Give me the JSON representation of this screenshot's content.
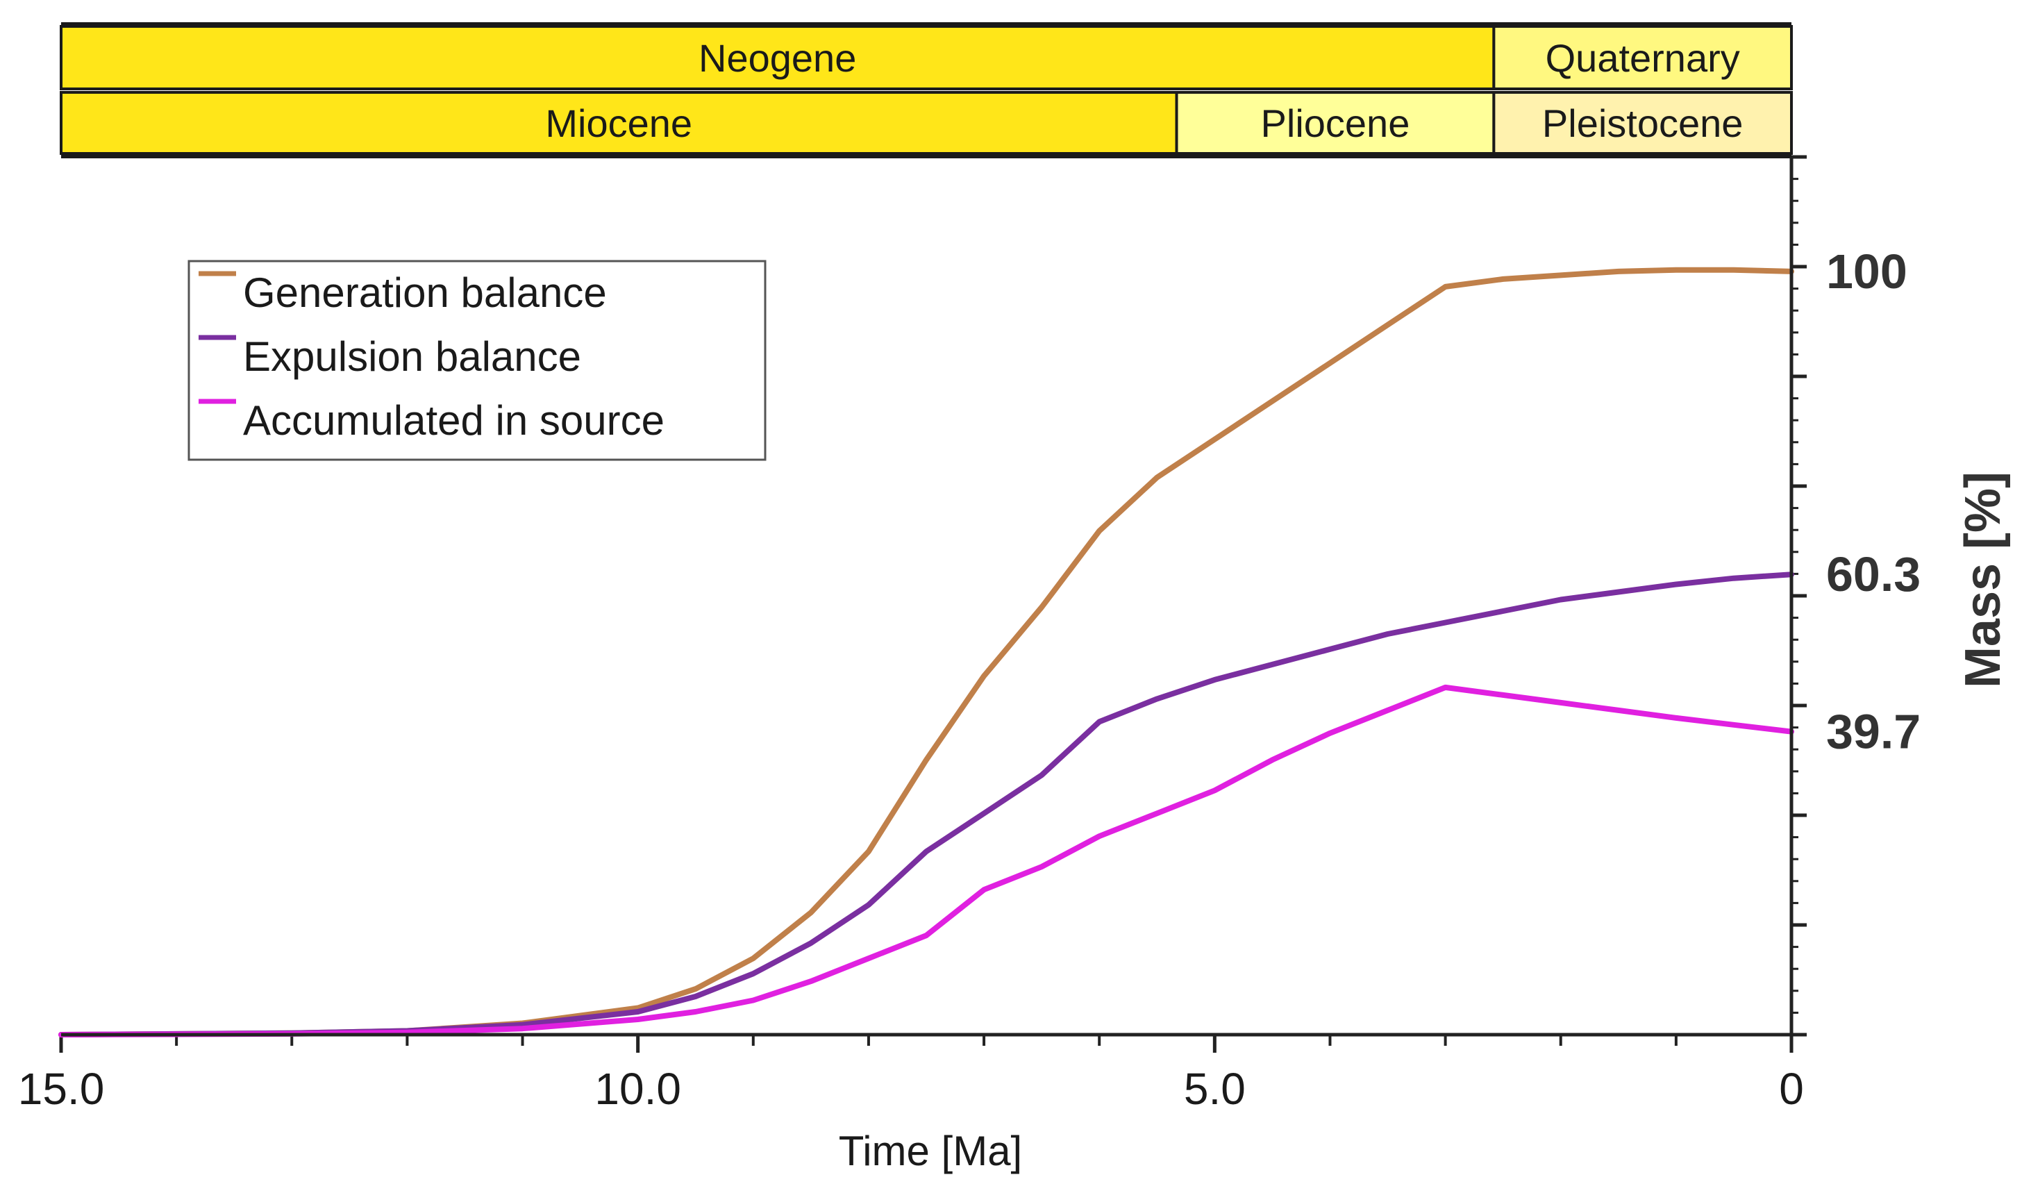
{
  "chart_data": {
    "type": "line",
    "xlabel": "Time [Ma]",
    "ylabel": "Mass [%]",
    "xlim": [
      15.0,
      0
    ],
    "ylim": [
      0,
      115
    ],
    "x_ticks": [
      "15.0",
      "10.0",
      "5.0",
      "0"
    ],
    "y_labels": [
      "100",
      "60.3",
      "39.7"
    ],
    "series": [
      {
        "name": "Generation balance",
        "color": "#C0804A",
        "x": [
          15,
          13,
          12,
          11,
          10,
          9.5,
          9,
          8.5,
          8,
          7.5,
          7,
          6.5,
          6,
          5.5,
          5,
          4.5,
          4,
          3.5,
          3,
          2.5,
          2,
          1.5,
          1,
          0.5,
          0
        ],
        "values": [
          0,
          0.2,
          0.5,
          1.5,
          3.5,
          6,
          10,
          16,
          24,
          36,
          47,
          56,
          66,
          73,
          78,
          83,
          88,
          93,
          98,
          99,
          99.5,
          100,
          100.2,
          100.2,
          100
        ]
      },
      {
        "name": "Expulsion balance",
        "color": "#7A2FA0",
        "x": [
          15,
          13,
          12,
          11,
          10,
          9.5,
          9,
          8.5,
          8,
          7.5,
          7,
          6.5,
          6,
          5.5,
          5,
          4.5,
          4,
          3.5,
          3,
          2.5,
          2,
          1.5,
          1,
          0.5,
          0
        ],
        "values": [
          0,
          0.2,
          0.5,
          1.3,
          3,
          5,
          8,
          12,
          17,
          24,
          29,
          34,
          41,
          44,
          46.5,
          48.5,
          50.5,
          52.5,
          54,
          55.5,
          57,
          58,
          59,
          59.8,
          60.3
        ]
      },
      {
        "name": "Accumulated in source",
        "color": "#E020E0",
        "x": [
          15,
          13,
          12,
          11,
          10,
          9.5,
          9,
          8.5,
          8,
          7.5,
          7,
          6.5,
          6,
          5.5,
          5,
          4.5,
          4,
          3.5,
          3,
          2.5,
          2,
          1.5,
          1,
          0.5,
          0
        ],
        "values": [
          0,
          0.1,
          0.3,
          0.8,
          2,
          3,
          4.5,
          7,
          10,
          13,
          19,
          22,
          26,
          29,
          32,
          36,
          39.5,
          42.5,
          45.5,
          44.5,
          43.5,
          42.5,
          41.5,
          40.6,
          39.7
        ]
      }
    ]
  },
  "timescale": {
    "periods": [
      {
        "label": "Neogene",
        "from": 15.0,
        "to": 2.58,
        "color": "#FFE619"
      },
      {
        "label": "Quaternary",
        "from": 2.58,
        "to": 0,
        "color": "#FFF880"
      }
    ],
    "epochs": [
      {
        "label": "Miocene",
        "from": 15.0,
        "to": 5.33,
        "color": "#FFE619"
      },
      {
        "label": "Pliocene",
        "from": 5.33,
        "to": 2.58,
        "color": "#FFFF99"
      },
      {
        "label": "Pleistocene",
        "from": 2.58,
        "to": 0,
        "color": "#FFF2AE"
      }
    ]
  }
}
